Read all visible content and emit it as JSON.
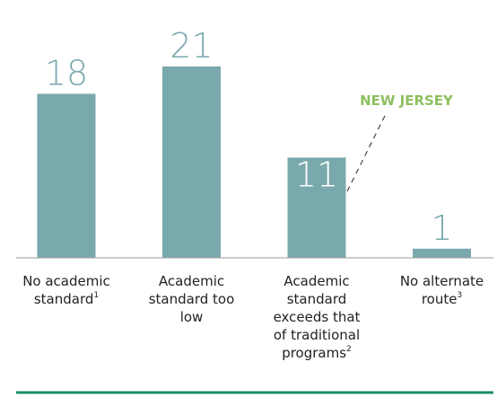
{
  "chart_data": {
    "type": "bar",
    "categories": [
      "No academic standard",
      "Academic standard too low",
      "Academic standard exceeds that of traditional programs",
      "No alternate route"
    ],
    "footnote_marks": [
      "1",
      null,
      "2",
      "3"
    ],
    "values": [
      18,
      21,
      11,
      1
    ],
    "color": "#7aa9ad",
    "ylim": [
      0,
      28
    ],
    "annotation": "NEW JERSEY",
    "annotation_color": "#8dbf5e",
    "rule_color": "#1e8c6e"
  }
}
